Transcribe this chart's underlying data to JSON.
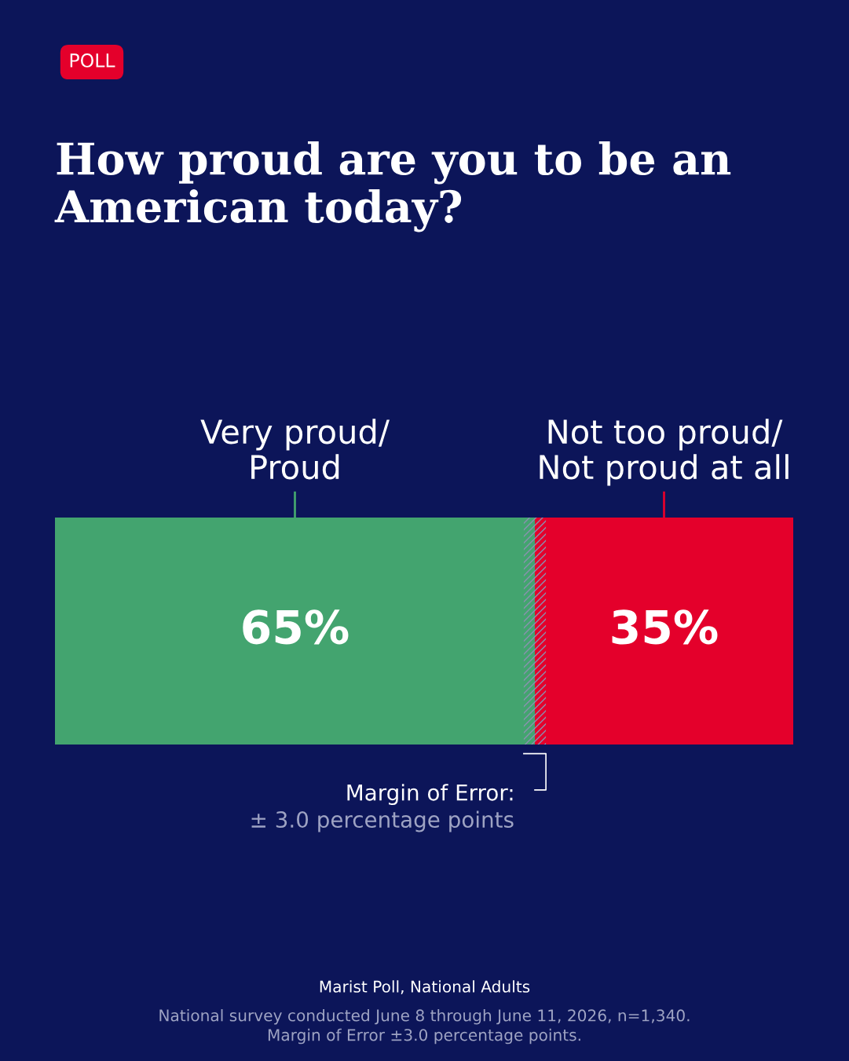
{
  "chart_data": {
    "type": "bar",
    "orientation": "horizontal",
    "stacked": true,
    "title": "How proud are you to be an\nAmerican today?",
    "categories": [
      null
    ],
    "series": [
      {
        "name": "Very proud/\nProud",
        "color": "#43a46f",
        "values": [
          65
        ],
        "value_labels": [
          "65%"
        ]
      },
      {
        "name": "Not too proud/\nNot proud at all",
        "color": "#e4002b",
        "values": [
          35
        ],
        "value_labels": [
          "35%"
        ]
      }
    ],
    "xlim": [
      0,
      100
    ],
    "grid": false,
    "legend": false,
    "bands": [
      {
        "axis": "x",
        "from": 63.5,
        "to": 66.5,
        "label": "Margin of Error:",
        "color": "#8a90b0"
      }
    ],
    "annotations": [
      "POLL",
      "± 3.0 percentage points",
      "Marist Poll, National Adults",
      "National survey conducted June 8 through June 11, 2026, n=1,340.\nMargin of Error ±3.0 percentage points."
    ]
  }
}
